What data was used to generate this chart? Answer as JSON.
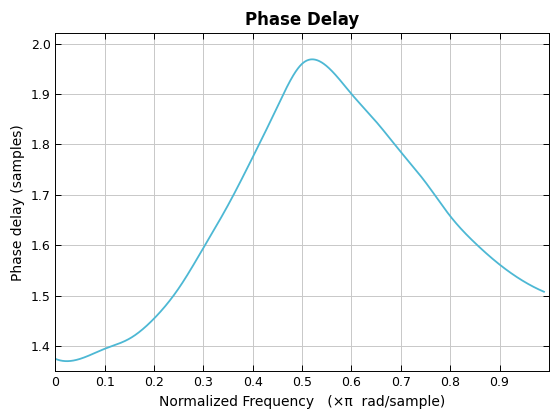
{
  "title": "Phase Delay",
  "xlabel": "Normalized Frequency   (×π  rad/sample)",
  "ylabel": "Phase delay (samples)",
  "line_color": "#4db8d4",
  "line_width": 1.3,
  "background_color": "#ffffff",
  "grid_color": "#c8c8c8",
  "xlim": [
    0,
    1.0
  ],
  "ylim": [
    1.35,
    2.02
  ],
  "xticks": [
    0,
    0.1,
    0.2,
    0.3,
    0.4,
    0.5,
    0.6,
    0.7,
    0.8,
    0.9
  ],
  "xtick_labels": [
    "0",
    "0.1",
    "0.2",
    "0.3",
    "0.4",
    "0.5",
    "0.6",
    "0.7",
    "0.8",
    "0.9"
  ],
  "yticks": [
    1.4,
    1.5,
    1.6,
    1.7,
    1.8,
    1.9,
    2.0
  ],
  "ytick_labels": [
    "1.4",
    "1.5",
    "1.6",
    "1.7",
    "1.8",
    "1.9",
    "2.0"
  ],
  "title_fontsize": 12,
  "label_fontsize": 10,
  "tick_fontsize": 9,
  "ctrl_x": [
    0,
    0.05,
    0.1,
    0.15,
    0.2,
    0.25,
    0.3,
    0.35,
    0.4,
    0.45,
    0.5,
    0.55,
    0.6,
    0.65,
    0.7,
    0.75,
    0.8,
    0.85,
    0.9,
    0.95,
    0.99
  ],
  "ctrl_y": [
    1.375,
    1.375,
    1.395,
    1.415,
    1.455,
    1.515,
    1.595,
    1.68,
    1.775,
    1.875,
    1.96,
    1.955,
    1.9,
    1.845,
    1.785,
    1.725,
    1.658,
    1.605,
    1.562,
    1.528,
    1.508
  ]
}
